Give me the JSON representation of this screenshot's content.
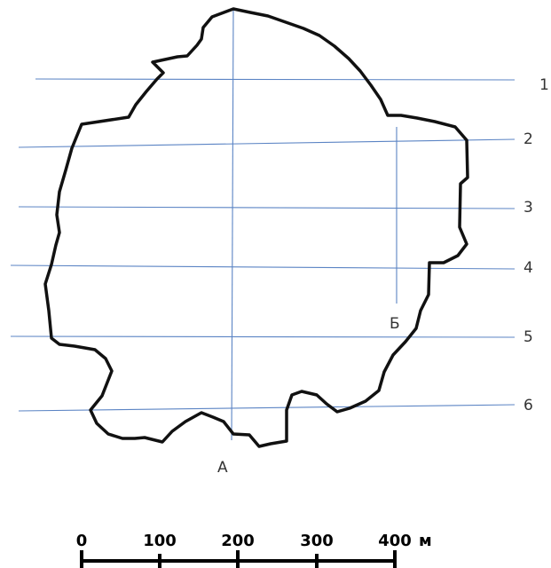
{
  "transect_lines": [
    {
      "label": "1"
    },
    {
      "label": "2"
    },
    {
      "label": "3"
    },
    {
      "label": "4"
    },
    {
      "label": "5"
    },
    {
      "label": "6"
    }
  ],
  "points": {
    "a": "А",
    "b": "Б"
  },
  "scale_bar": {
    "ticks": [
      "0",
      "100",
      "200",
      "300",
      "400"
    ],
    "unit": "м"
  },
  "colors": {
    "outline": "#111111",
    "grid_lines": "#5b84c4"
  }
}
